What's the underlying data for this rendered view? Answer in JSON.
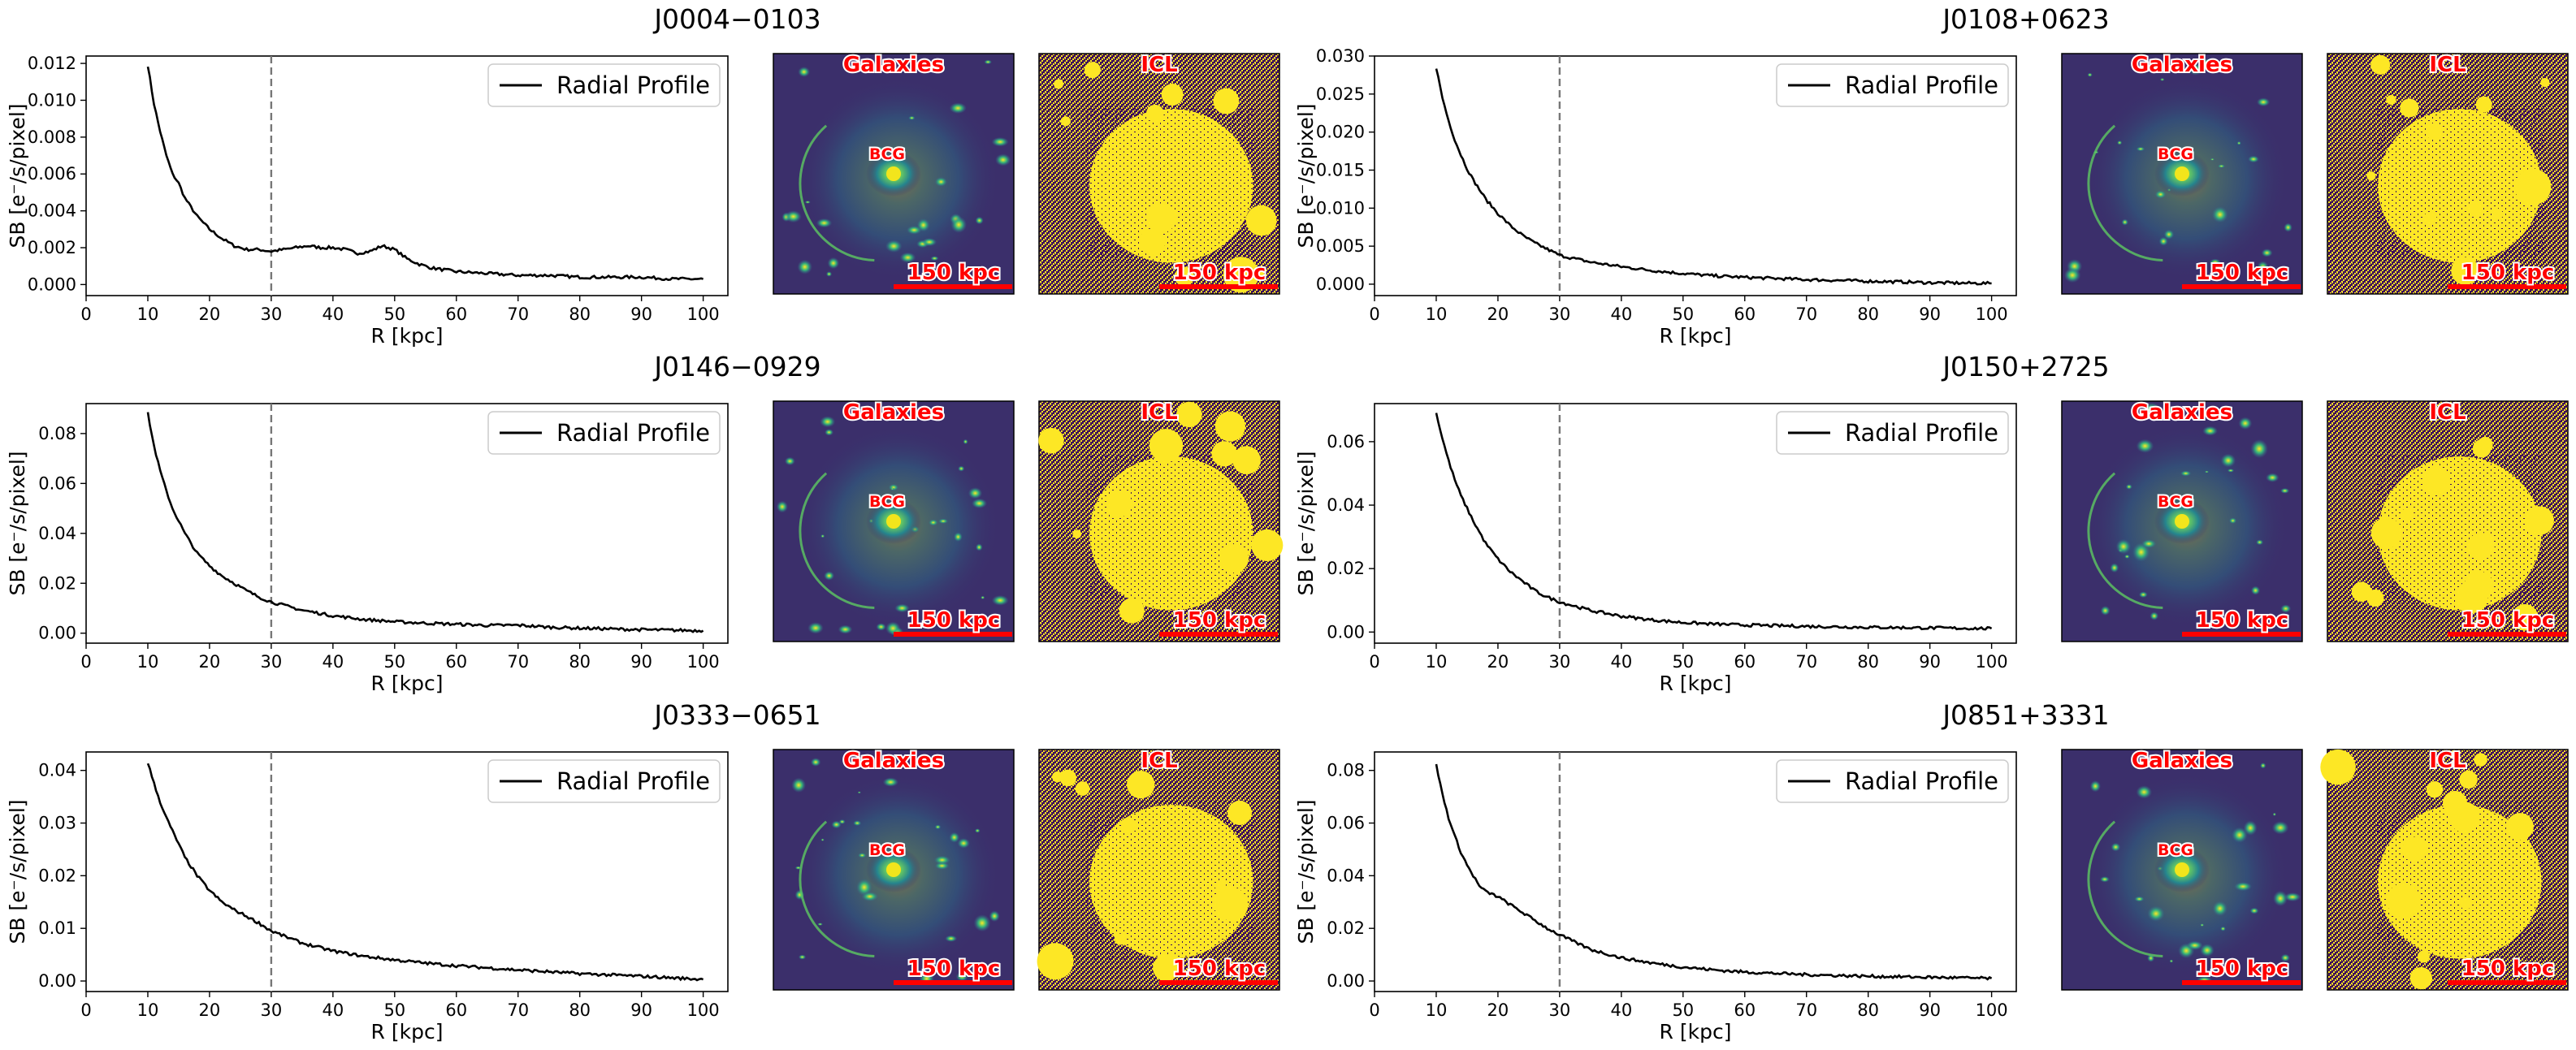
{
  "figure": {
    "layout": "3 rows x 2 panels; each panel = radial profile plot + Galaxies image + ICL image",
    "common": {
      "legend_label": "Radial Profile",
      "xlabel": "R [kpc]",
      "ylabel": "SB [e⁻/s/pixel]",
      "galaxies_label": "Galaxies",
      "icl_label": "ICL",
      "bcg_label": "BCG",
      "scalebar_label": "150 kpc",
      "vline_x": 30
    },
    "colors": {
      "profile": "#000000",
      "vline": "#777777",
      "annotation": "#ff0000",
      "annotation_outline": "#ffffff",
      "scalebar": "#ff0000",
      "galaxy_bg": "#3b2f6b",
      "galaxy_glow": "#2ea08a",
      "galaxy_core": "#f2e51c",
      "icl_bg": "#3e0e59",
      "icl_fg": "#fde725"
    }
  },
  "chart_data": [
    {
      "type": "line",
      "title": "J0004−0103",
      "xlabel": "R [kpc]",
      "ylabel": "SB [e⁻/s/pixel]",
      "xlim": [
        0,
        104
      ],
      "ylim": [
        -0.0006,
        0.0124
      ],
      "xticks": [
        0,
        10,
        20,
        30,
        40,
        50,
        60,
        70,
        80,
        90,
        100
      ],
      "yticks": [
        0.0,
        0.002,
        0.004,
        0.006,
        0.008,
        0.01,
        0.012
      ],
      "ytick_labels": [
        "0.000",
        "0.002",
        "0.004",
        "0.006",
        "0.008",
        "0.010",
        "0.012"
      ],
      "legend": "top-right",
      "series": [
        {
          "name": "Radial Profile",
          "x": [
            10,
            11,
            12,
            13,
            14,
            15,
            16,
            18,
            20,
            22,
            24,
            26,
            28,
            30,
            32,
            34,
            36,
            38,
            40,
            42,
            44,
            46,
            48,
            50,
            52,
            54,
            56,
            58,
            60,
            65,
            70,
            75,
            80,
            85,
            90,
            95,
            100
          ],
          "y": [
            0.0119,
            0.0098,
            0.0083,
            0.007,
            0.006,
            0.0055,
            0.0047,
            0.0037,
            0.003,
            0.0025,
            0.0021,
            0.0019,
            0.0019,
            0.0018,
            0.0019,
            0.002,
            0.0021,
            0.002,
            0.002,
            0.0019,
            0.0017,
            0.0018,
            0.0021,
            0.0019,
            0.0014,
            0.0011,
            0.0009,
            0.0008,
            0.0007,
            0.0006,
            0.0005,
            0.0005,
            0.0004,
            0.0004,
            0.0004,
            0.0003,
            0.0003
          ]
        }
      ]
    },
    {
      "type": "line",
      "title": "J0108+0623",
      "xlabel": "R [kpc]",
      "ylabel": "SB [e⁻/s/pixel]",
      "xlim": [
        0,
        104
      ],
      "ylim": [
        -0.0015,
        0.03
      ],
      "xticks": [
        0,
        10,
        20,
        30,
        40,
        50,
        60,
        70,
        80,
        90,
        100
      ],
      "yticks": [
        0.0,
        0.005,
        0.01,
        0.015,
        0.02,
        0.025,
        0.03
      ],
      "ytick_labels": [
        "0.000",
        "0.005",
        "0.010",
        "0.015",
        "0.020",
        "0.025",
        "0.030"
      ],
      "legend": "top-right",
      "series": [
        {
          "name": "Radial Profile",
          "x": [
            10,
            11,
            12,
            13,
            14,
            15,
            16,
            18,
            20,
            22,
            24,
            26,
            28,
            30,
            35,
            40,
            45,
            50,
            55,
            60,
            70,
            80,
            90,
            100
          ],
          "y": [
            0.0285,
            0.0245,
            0.0215,
            0.019,
            0.017,
            0.0152,
            0.0137,
            0.0112,
            0.0093,
            0.0077,
            0.0064,
            0.0054,
            0.0046,
            0.0038,
            0.0029,
            0.0023,
            0.0018,
            0.0014,
            0.0011,
            0.0009,
            0.0006,
            0.0004,
            0.0002,
            0.0001
          ]
        }
      ]
    },
    {
      "type": "line",
      "title": "J0146−0929",
      "xlabel": "R [kpc]",
      "ylabel": "SB [e⁻/s/pixel]",
      "xlim": [
        0,
        104
      ],
      "ylim": [
        -0.004,
        0.092
      ],
      "xticks": [
        0,
        10,
        20,
        30,
        40,
        50,
        60,
        70,
        80,
        90,
        100
      ],
      "yticks": [
        0.0,
        0.02,
        0.04,
        0.06,
        0.08
      ],
      "ytick_labels": [
        "0.00",
        "0.02",
        "0.04",
        "0.06",
        "0.08"
      ],
      "legend": "top-right",
      "series": [
        {
          "name": "Radial Profile",
          "x": [
            10,
            11,
            12,
            13,
            14,
            15,
            16,
            18,
            20,
            22,
            24,
            26,
            28,
            30,
            35,
            40,
            45,
            50,
            55,
            60,
            65,
            70,
            75,
            80,
            90,
            100
          ],
          "y": [
            0.088,
            0.075,
            0.065,
            0.057,
            0.05,
            0.045,
            0.04,
            0.032,
            0.027,
            0.023,
            0.02,
            0.017,
            0.0145,
            0.0125,
            0.0092,
            0.007,
            0.0055,
            0.0046,
            0.004,
            0.0036,
            0.0031,
            0.0032,
            0.0024,
            0.002,
            0.0014,
            0.001
          ]
        }
      ]
    },
    {
      "type": "line",
      "title": "J0150+2725",
      "xlabel": "R [kpc]",
      "ylabel": "SB [e⁻/s/pixel]",
      "xlim": [
        0,
        104
      ],
      "ylim": [
        -0.0035,
        0.072
      ],
      "xticks": [
        0,
        10,
        20,
        30,
        40,
        50,
        60,
        70,
        80,
        90,
        100
      ],
      "yticks": [
        0.0,
        0.02,
        0.04,
        0.06
      ],
      "ytick_labels": [
        "0.00",
        "0.02",
        "0.04",
        "0.06"
      ],
      "legend": "top-right",
      "series": [
        {
          "name": "Radial Profile",
          "x": [
            10,
            11,
            12,
            13,
            14,
            15,
            16,
            18,
            20,
            22,
            24,
            26,
            28,
            30,
            35,
            40,
            45,
            50,
            55,
            60,
            70,
            80,
            90,
            100
          ],
          "y": [
            0.069,
            0.061,
            0.054,
            0.048,
            0.043,
            0.039,
            0.035,
            0.028,
            0.023,
            0.019,
            0.016,
            0.013,
            0.011,
            0.0095,
            0.0068,
            0.005,
            0.0038,
            0.003,
            0.0025,
            0.0022,
            0.0018,
            0.0015,
            0.0013,
            0.0011
          ]
        }
      ]
    },
    {
      "type": "line",
      "title": "J0333−0651",
      "xlabel": "R [kpc]",
      "ylabel": "SB [e⁻/s/pixel]",
      "xlim": [
        0,
        104
      ],
      "ylim": [
        -0.002,
        0.0435
      ],
      "xticks": [
        0,
        10,
        20,
        30,
        40,
        50,
        60,
        70,
        80,
        90,
        100
      ],
      "yticks": [
        0.0,
        0.01,
        0.02,
        0.03,
        0.04
      ],
      "ytick_labels": [
        "0.00",
        "0.01",
        "0.02",
        "0.03",
        "0.04"
      ],
      "legend": "top-right",
      "series": [
        {
          "name": "Radial Profile",
          "x": [
            10,
            11,
            12,
            13,
            14,
            15,
            16,
            18,
            20,
            22,
            24,
            26,
            28,
            30,
            35,
            40,
            45,
            50,
            55,
            60,
            70,
            80,
            90,
            100
          ],
          "y": [
            0.0415,
            0.0375,
            0.034,
            0.031,
            0.0285,
            0.026,
            0.0235,
            0.02,
            0.0172,
            0.015,
            0.0135,
            0.0123,
            0.011,
            0.0095,
            0.0072,
            0.0057,
            0.0047,
            0.004,
            0.0034,
            0.0029,
            0.0021,
            0.0014,
            0.0009,
            0.0003
          ]
        }
      ]
    },
    {
      "type": "line",
      "title": "J0851+3331",
      "xlabel": "R [kpc]",
      "ylabel": "SB [e⁻/s/pixel]",
      "xlim": [
        0,
        104
      ],
      "ylim": [
        -0.004,
        0.087
      ],
      "xticks": [
        0,
        10,
        20,
        30,
        40,
        50,
        60,
        70,
        80,
        90,
        100
      ],
      "yticks": [
        0.0,
        0.02,
        0.04,
        0.06,
        0.08
      ],
      "ytick_labels": [
        "0.00",
        "0.02",
        "0.04",
        "0.06",
        "0.08"
      ],
      "legend": "top-right",
      "series": [
        {
          "name": "Radial Profile",
          "x": [
            10,
            11,
            12,
            13,
            14,
            15,
            16,
            17,
            18,
            20,
            22,
            24,
            26,
            28,
            30,
            35,
            40,
            45,
            50,
            55,
            60,
            70,
            80,
            90,
            100
          ],
          "y": [
            0.082,
            0.071,
            0.062,
            0.055,
            0.049,
            0.044,
            0.04,
            0.036,
            0.034,
            0.032,
            0.029,
            0.026,
            0.023,
            0.02,
            0.0175,
            0.012,
            0.0088,
            0.0068,
            0.0053,
            0.0042,
            0.0034,
            0.0024,
            0.0018,
            0.0014,
            0.001
          ]
        }
      ]
    }
  ]
}
